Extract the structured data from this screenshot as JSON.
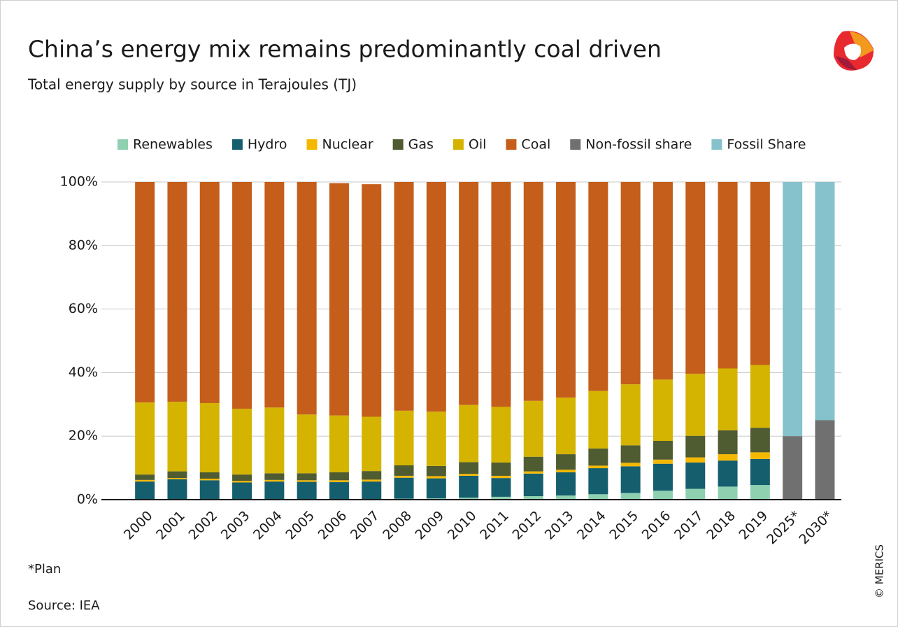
{
  "chart_data": {
    "type": "stacked-bar",
    "title": "China’s energy mix remains predominantly coal driven",
    "subtitle": "Total energy supply by source in Terajoules (TJ)",
    "notes": [
      "*Plan",
      "Source: IEA"
    ],
    "credit": "© MERICS",
    "categories": [
      "2000",
      "2001",
      "2002",
      "2003",
      "2004",
      "2005",
      "2006",
      "2007",
      "2008",
      "2009",
      "2010",
      "2011",
      "2012",
      "2013",
      "2014",
      "2015",
      "2016",
      "2017",
      "2018",
      "2019",
      "2025*",
      "2030*"
    ],
    "category_colors": [
      "#1a1a1a",
      "#1a1a1a",
      "#1a1a1a",
      "#1a1a1a",
      "#1a1a1a",
      "#1a1a1a",
      "#1a1a1a",
      "#1a1a1a",
      "#1a1a1a",
      "#1a1a1a",
      "#1a1a1a",
      "#1a1a1a",
      "#1a1a1a",
      "#1a1a1a",
      "#1a1a1a",
      "#1a1a1a",
      "#1a1a1a",
      "#1a1a1a",
      "#1a1a1a",
      "#1a1a1a",
      "#8a8a8a",
      "#8a8a8a"
    ],
    "series": [
      {
        "name": "Renewables",
        "color": "#8fd0b0",
        "values": [
          0.2,
          0.2,
          0.2,
          0.2,
          0.2,
          0.2,
          0.2,
          0.2,
          0.3,
          0.4,
          0.6,
          0.9,
          1.1,
          1.3,
          1.7,
          2.1,
          2.8,
          3.4,
          4.1,
          4.6,
          null,
          null
        ]
      },
      {
        "name": "Hydro",
        "color": "#155e6e",
        "values": [
          5.5,
          6.2,
          5.9,
          5.2,
          5.5,
          5.4,
          5.3,
          5.5,
          6.6,
          6.3,
          6.9,
          5.9,
          7.1,
          7.3,
          8.2,
          8.4,
          8.5,
          8.3,
          8.2,
          8.2,
          null,
          null
        ]
      },
      {
        "name": "Nuclear",
        "color": "#f5b800",
        "values": [
          0.5,
          0.4,
          0.5,
          0.5,
          0.5,
          0.5,
          0.6,
          0.6,
          0.6,
          0.7,
          0.6,
          0.7,
          0.7,
          0.8,
          0.8,
          1.1,
          1.3,
          1.6,
          2.0,
          2.1,
          null,
          null
        ]
      },
      {
        "name": "Gas",
        "color": "#4f5b30",
        "values": [
          1.7,
          2.1,
          2.0,
          2.0,
          2.1,
          2.2,
          2.5,
          2.7,
          3.3,
          3.2,
          3.7,
          4.2,
          4.6,
          4.9,
          5.4,
          5.5,
          5.9,
          6.8,
          7.5,
          7.7,
          null,
          null
        ]
      },
      {
        "name": "Oil",
        "color": "#d4b400",
        "values": [
          22.7,
          21.9,
          21.8,
          20.7,
          20.7,
          18.5,
          17.9,
          17.1,
          17.2,
          17.1,
          18.0,
          17.5,
          17.6,
          17.8,
          18.1,
          19.2,
          19.3,
          19.5,
          19.5,
          19.8,
          null,
          null
        ]
      },
      {
        "name": "Coal",
        "color": "#c45e1a",
        "values": [
          69.4,
          69.2,
          69.6,
          71.4,
          71.0,
          73.2,
          73.1,
          73.2,
          72.0,
          72.3,
          70.2,
          70.8,
          68.9,
          67.9,
          65.8,
          63.7,
          62.2,
          60.4,
          58.7,
          57.6,
          null,
          null
        ]
      },
      {
        "name": "Non-fossil share",
        "color": "#707070",
        "values": [
          null,
          null,
          null,
          null,
          null,
          null,
          null,
          null,
          null,
          null,
          null,
          null,
          null,
          null,
          null,
          null,
          null,
          null,
          null,
          null,
          20,
          25
        ]
      },
      {
        "name": "Fossil Share",
        "color": "#86c2cb",
        "values": [
          null,
          null,
          null,
          null,
          null,
          null,
          null,
          null,
          null,
          null,
          null,
          null,
          null,
          null,
          null,
          null,
          null,
          null,
          null,
          null,
          80,
          75
        ]
      }
    ],
    "ylim": [
      0,
      100
    ],
    "yticks": [
      {
        "value": 0,
        "label": "0%"
      },
      {
        "value": 20,
        "label": "20%"
      },
      {
        "value": 40,
        "label": "40%"
      },
      {
        "value": 60,
        "label": "60%"
      },
      {
        "value": 80,
        "label": "80%"
      },
      {
        "value": 100,
        "label": "100%"
      }
    ],
    "grid": true,
    "legend": "top"
  }
}
